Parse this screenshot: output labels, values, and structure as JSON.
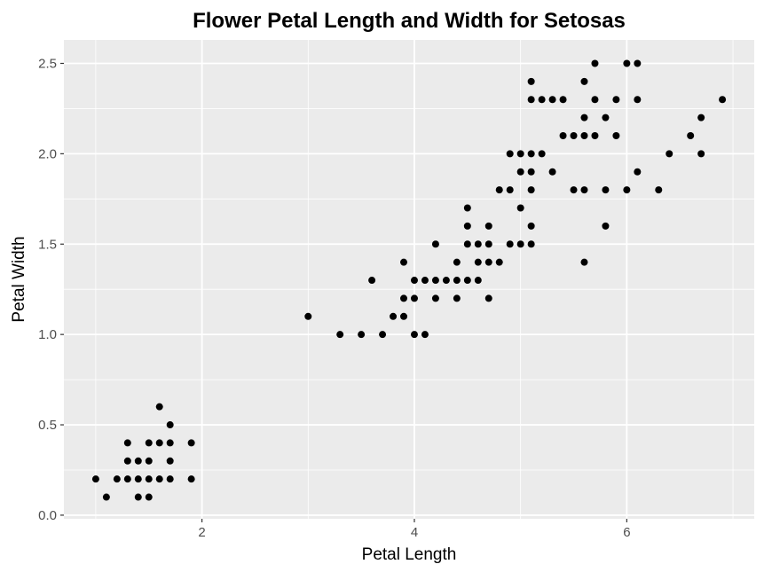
{
  "chart_data": {
    "type": "scatter",
    "title": "Flower Petal Length and Width for Setosas",
    "xlabel": "Petal Length",
    "ylabel": "Petal Width",
    "xlim": [
      0.7,
      7.2
    ],
    "ylim": [
      -0.02,
      2.63
    ],
    "x_ticks": [
      2,
      4,
      6
    ],
    "x_tick_labels": [
      "2",
      "4",
      "6"
    ],
    "y_ticks": [
      0.0,
      0.5,
      1.0,
      1.5,
      2.0,
      2.5
    ],
    "y_tick_labels": [
      "0.0",
      "0.5",
      "1.0",
      "1.5",
      "2.0",
      "2.5"
    ],
    "grid": true,
    "panel_color": "#ebebeb",
    "grid_color": "#ffffff",
    "point_color": "#000000",
    "points": [
      {
        "x": 1.0,
        "y": 0.2
      },
      {
        "x": 1.1,
        "y": 0.1
      },
      {
        "x": 1.2,
        "y": 0.2
      },
      {
        "x": 1.3,
        "y": 0.2
      },
      {
        "x": 1.3,
        "y": 0.3
      },
      {
        "x": 1.3,
        "y": 0.4
      },
      {
        "x": 1.4,
        "y": 0.1
      },
      {
        "x": 1.4,
        "y": 0.2
      },
      {
        "x": 1.4,
        "y": 0.3
      },
      {
        "x": 1.5,
        "y": 0.1
      },
      {
        "x": 1.5,
        "y": 0.2
      },
      {
        "x": 1.5,
        "y": 0.3
      },
      {
        "x": 1.5,
        "y": 0.4
      },
      {
        "x": 1.6,
        "y": 0.2
      },
      {
        "x": 1.6,
        "y": 0.4
      },
      {
        "x": 1.6,
        "y": 0.6
      },
      {
        "x": 1.7,
        "y": 0.2
      },
      {
        "x": 1.7,
        "y": 0.3
      },
      {
        "x": 1.7,
        "y": 0.4
      },
      {
        "x": 1.7,
        "y": 0.5
      },
      {
        "x": 1.9,
        "y": 0.2
      },
      {
        "x": 1.9,
        "y": 0.4
      },
      {
        "x": 3.0,
        "y": 1.1
      },
      {
        "x": 3.3,
        "y": 1.0
      },
      {
        "x": 3.5,
        "y": 1.0
      },
      {
        "x": 3.6,
        "y": 1.3
      },
      {
        "x": 3.7,
        "y": 1.0
      },
      {
        "x": 3.8,
        "y": 1.1
      },
      {
        "x": 3.9,
        "y": 1.1
      },
      {
        "x": 3.9,
        "y": 1.2
      },
      {
        "x": 3.9,
        "y": 1.4
      },
      {
        "x": 4.0,
        "y": 1.0
      },
      {
        "x": 4.0,
        "y": 1.2
      },
      {
        "x": 4.0,
        "y": 1.3
      },
      {
        "x": 4.1,
        "y": 1.0
      },
      {
        "x": 4.1,
        "y": 1.3
      },
      {
        "x": 4.2,
        "y": 1.2
      },
      {
        "x": 4.2,
        "y": 1.3
      },
      {
        "x": 4.2,
        "y": 1.5
      },
      {
        "x": 4.3,
        "y": 1.3
      },
      {
        "x": 4.4,
        "y": 1.2
      },
      {
        "x": 4.4,
        "y": 1.3
      },
      {
        "x": 4.4,
        "y": 1.4
      },
      {
        "x": 4.5,
        "y": 1.3
      },
      {
        "x": 4.5,
        "y": 1.5
      },
      {
        "x": 4.5,
        "y": 1.6
      },
      {
        "x": 4.5,
        "y": 1.7
      },
      {
        "x": 4.6,
        "y": 1.3
      },
      {
        "x": 4.6,
        "y": 1.4
      },
      {
        "x": 4.6,
        "y": 1.5
      },
      {
        "x": 4.7,
        "y": 1.2
      },
      {
        "x": 4.7,
        "y": 1.4
      },
      {
        "x": 4.7,
        "y": 1.5
      },
      {
        "x": 4.7,
        "y": 1.6
      },
      {
        "x": 4.8,
        "y": 1.4
      },
      {
        "x": 4.8,
        "y": 1.8
      },
      {
        "x": 4.9,
        "y": 1.5
      },
      {
        "x": 4.9,
        "y": 1.8
      },
      {
        "x": 4.9,
        "y": 2.0
      },
      {
        "x": 5.0,
        "y": 1.5
      },
      {
        "x": 5.0,
        "y": 1.7
      },
      {
        "x": 5.0,
        "y": 1.9
      },
      {
        "x": 5.0,
        "y": 2.0
      },
      {
        "x": 5.1,
        "y": 1.5
      },
      {
        "x": 5.1,
        "y": 1.6
      },
      {
        "x": 5.1,
        "y": 1.8
      },
      {
        "x": 5.1,
        "y": 1.9
      },
      {
        "x": 5.1,
        "y": 2.0
      },
      {
        "x": 5.1,
        "y": 2.3
      },
      {
        "x": 5.1,
        "y": 2.4
      },
      {
        "x": 5.2,
        "y": 2.0
      },
      {
        "x": 5.2,
        "y": 2.3
      },
      {
        "x": 5.3,
        "y": 1.9
      },
      {
        "x": 5.3,
        "y": 2.3
      },
      {
        "x": 5.4,
        "y": 2.1
      },
      {
        "x": 5.4,
        "y": 2.3
      },
      {
        "x": 5.5,
        "y": 1.8
      },
      {
        "x": 5.5,
        "y": 2.1
      },
      {
        "x": 5.6,
        "y": 1.4
      },
      {
        "x": 5.6,
        "y": 1.8
      },
      {
        "x": 5.6,
        "y": 2.1
      },
      {
        "x": 5.6,
        "y": 2.2
      },
      {
        "x": 5.6,
        "y": 2.4
      },
      {
        "x": 5.7,
        "y": 2.1
      },
      {
        "x": 5.7,
        "y": 2.3
      },
      {
        "x": 5.7,
        "y": 2.5
      },
      {
        "x": 5.8,
        "y": 1.6
      },
      {
        "x": 5.8,
        "y": 1.8
      },
      {
        "x": 5.8,
        "y": 2.2
      },
      {
        "x": 5.9,
        "y": 2.1
      },
      {
        "x": 5.9,
        "y": 2.3
      },
      {
        "x": 6.0,
        "y": 1.8
      },
      {
        "x": 6.0,
        "y": 2.5
      },
      {
        "x": 6.1,
        "y": 1.9
      },
      {
        "x": 6.1,
        "y": 2.3
      },
      {
        "x": 6.1,
        "y": 2.5
      },
      {
        "x": 6.3,
        "y": 1.8
      },
      {
        "x": 6.4,
        "y": 2.0
      },
      {
        "x": 6.6,
        "y": 2.1
      },
      {
        "x": 6.7,
        "y": 2.0
      },
      {
        "x": 6.7,
        "y": 2.2
      },
      {
        "x": 6.9,
        "y": 2.3
      }
    ]
  }
}
